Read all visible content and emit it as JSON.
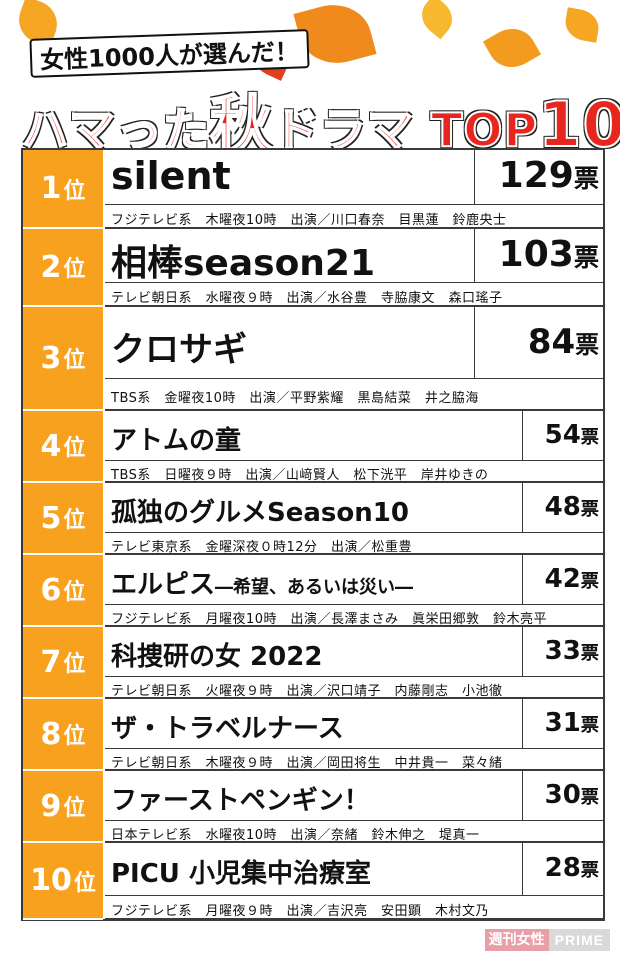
{
  "header": {
    "subtitle": "女性1000人が選んだ！",
    "title_pre": "ハマった",
    "title_big": "秋",
    "title_post": "ドラマ",
    "title_top": "TOP",
    "title_num": "10"
  },
  "colors": {
    "rank_bg": "#f7a11f",
    "title_red": "#e8261d",
    "leaf_orange": "#f08a1c",
    "leaf_red": "#e0401e"
  },
  "rank_unit": "位",
  "vote_unit": "票",
  "entries": [
    {
      "rank": "1",
      "title": "silent",
      "subtitle": "",
      "votes": "129",
      "info": "フジテレビ系　木曜夜10時　出演／川口春奈　目黒蓮　鈴鹿央士"
    },
    {
      "rank": "2",
      "title": "相棒season21",
      "subtitle": "",
      "votes": "103",
      "info": "テレビ朝日系　水曜夜９時　出演／水谷豊　寺脇康文　森口瑤子"
    },
    {
      "rank": "3",
      "title": "クロサギ",
      "subtitle": "",
      "votes": "84",
      "info": "TBS系　金曜夜10時　出演／平野紫耀　黒島結菜　井之脇海"
    },
    {
      "rank": "4",
      "title": "アトムの童",
      "subtitle": "",
      "votes": "54",
      "info": "TBS系　日曜夜９時　出演／山﨑賢人　松下洸平　岸井ゆきの"
    },
    {
      "rank": "5",
      "title": "孤独のグルメSeason10",
      "subtitle": "",
      "votes": "48",
      "info": "テレビ東京系　金曜深夜０時12分　出演／松重豊"
    },
    {
      "rank": "6",
      "title": "エルピス",
      "subtitle": "―希望、あるいは災い―",
      "votes": "42",
      "info": "フジテレビ系　月曜夜10時　出演／長澤まさみ　眞栄田郷敦　鈴木亮平"
    },
    {
      "rank": "7",
      "title": "科捜研の女 2022",
      "subtitle": "",
      "votes": "33",
      "info": "テレビ朝日系　火曜夜９時　出演／沢口靖子　内藤剛志　小池徹"
    },
    {
      "rank": "8",
      "title": "ザ・トラベルナース",
      "subtitle": "",
      "votes": "31",
      "info": "テレビ朝日系　木曜夜９時　出演／岡田将生　中井貴一　菜々緒"
    },
    {
      "rank": "9",
      "title": "ファーストペンギン！",
      "subtitle": "",
      "votes": "30",
      "info": "日本テレビ系　水曜夜10時　出演／奈緒　鈴木伸之　堤真一"
    },
    {
      "rank": "10",
      "title": "PICU 小児集中治療室",
      "subtitle": "",
      "votes": "28",
      "info": "フジテレビ系　月曜夜９時　出演／吉沢亮　安田顕　木村文乃"
    }
  ],
  "logo": {
    "part1": "週刊女性",
    "part2": "PRIME"
  }
}
